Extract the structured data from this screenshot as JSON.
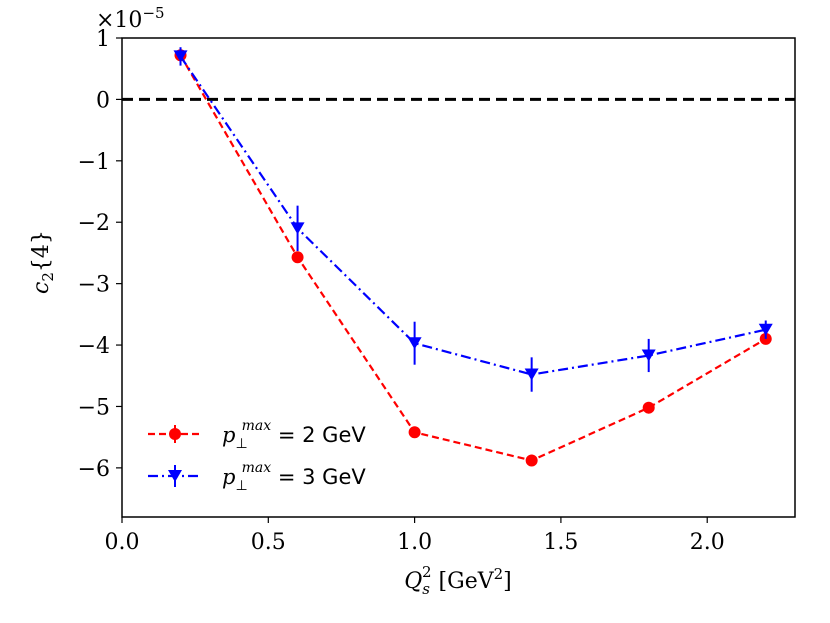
{
  "chart_data": {
    "type": "line",
    "title": "",
    "x": [
      0.2,
      0.6,
      1.0,
      1.4,
      1.8,
      2.2
    ],
    "xlim": [
      0.0,
      2.3
    ],
    "ylim": [
      -6.8,
      1.0
    ],
    "xticks": [
      0.0,
      0.5,
      1.0,
      1.5,
      2.0
    ],
    "xtick_labels": [
      "0.0",
      "0.5",
      "1.0",
      "1.5",
      "2.0"
    ],
    "yticks": [
      1,
      0,
      -1,
      -2,
      -3,
      -4,
      -5,
      -6
    ],
    "ytick_labels": [
      "1",
      "0",
      "−1",
      "−2",
      "−3",
      "−4",
      "−5",
      "−6"
    ],
    "y_multiplier": {
      "base": "×10",
      "exponent": "−5"
    },
    "xlabel": {
      "main": "Q",
      "sub": "s",
      "sup": "2",
      "unit": " [GeV",
      "unit_sup": "2",
      "unit_end": "]"
    },
    "ylabel": {
      "main": "c",
      "sub": "2",
      "rest": "{4}"
    },
    "reference_line": {
      "y": 0,
      "style": "dashed",
      "color": "#000000"
    },
    "legend_position": "lower-left",
    "series": [
      {
        "name": "p⊥max = 2 GeV",
        "legend": {
          "main": "p",
          "sub": "⊥",
          "sup": "max",
          "rest": " = 2 GeV"
        },
        "color": "#ff0000",
        "marker": "circle",
        "linestyle": "dashed",
        "values": [
          0.72,
          -2.57,
          -5.42,
          -5.88,
          -5.02,
          -3.9
        ],
        "errors": [
          0.08,
          0.08,
          0.08,
          0.08,
          0.08,
          0.08
        ]
      },
      {
        "name": "p⊥max = 3 GeV",
        "legend": {
          "main": "p",
          "sub": "⊥",
          "sup": "max",
          "rest": " = 3 GeV"
        },
        "color": "#0000ff",
        "marker": "triangle-down",
        "linestyle": "dashdot",
        "values": [
          0.7,
          -2.1,
          -3.97,
          -4.48,
          -4.17,
          -3.75
        ],
        "errors": [
          0.15,
          0.37,
          0.35,
          0.28,
          0.27,
          0.15
        ]
      }
    ]
  }
}
